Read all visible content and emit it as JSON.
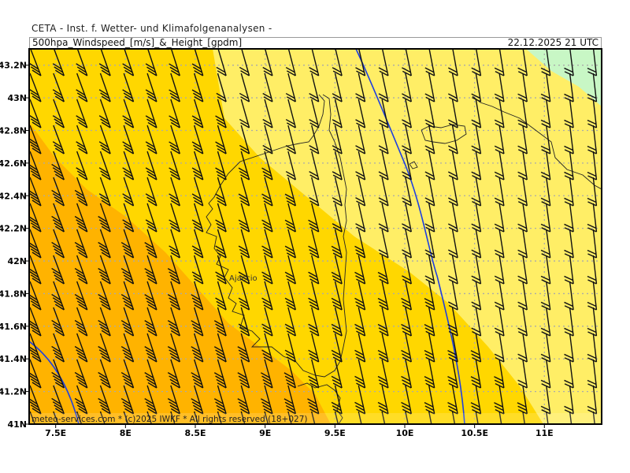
{
  "header": {
    "organization": "CETA - Inst. f. Wetter- und Klimafolgenanalysen -",
    "title": "500hpa_Windspeed_[m/s]_&_Height_[gpdm]",
    "valid_time": "22.12.2025 21 UTC"
  },
  "map": {
    "lon_range": [
      7.31,
      11.41
    ],
    "lat_range": [
      41.0,
      43.3
    ],
    "x_ticks": [
      "7.5E",
      "8E",
      "8.5E",
      "9E",
      "9.5E",
      "10E",
      "10.5E",
      "11E"
    ],
    "x_tick_values": [
      7.5,
      8,
      8.5,
      9,
      9.5,
      10,
      10.5,
      11
    ],
    "y_ticks": [
      "41N",
      "41.2N",
      "41.4N",
      "41.6N",
      "41.8N",
      "42N",
      "42.2N",
      "42.4N",
      "42.6N",
      "42.8N",
      "43N",
      "43.2N"
    ],
    "y_tick_values": [
      41,
      41.2,
      41.4,
      41.6,
      41.8,
      42,
      42.2,
      42.4,
      42.6,
      42.8,
      43,
      43.2
    ],
    "city_label": "Ajaccio",
    "credit": "meteo-services.com * (c)2025 IWKF * All rights reserved (18+027)",
    "colors": {
      "speed_high": "#FFB300",
      "speed_mid": "#FFD700",
      "speed_low": "#FFEE66",
      "speed_lowest": "#C8F7C5",
      "height_contour": "#1E3FE0",
      "grid": "#AAAAAA",
      "coastline": "#222222"
    },
    "grid": true
  }
}
